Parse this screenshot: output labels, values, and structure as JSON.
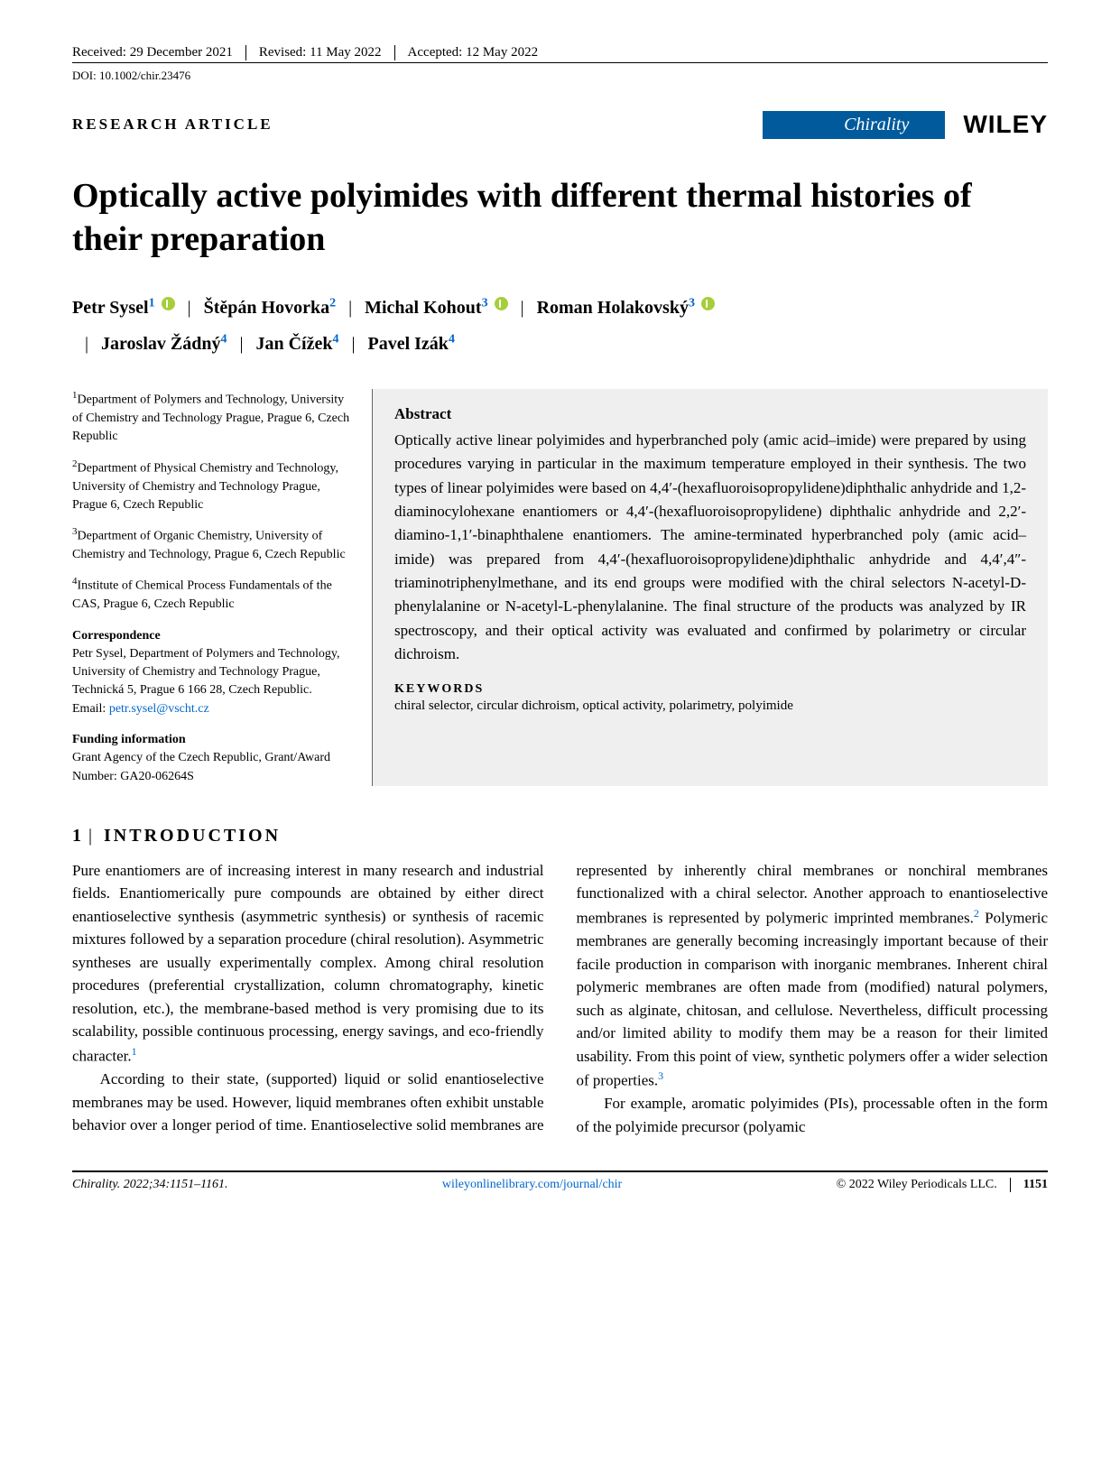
{
  "meta": {
    "received": "Received: 29 December 2021",
    "revised": "Revised: 11 May 2022",
    "accepted": "Accepted: 12 May 2022",
    "doi": "DOI: 10.1002/chir.23476",
    "article_type": "RESEARCH ARTICLE",
    "journal_badge": "Chirality",
    "publisher": "WILEY"
  },
  "title": "Optically active polyimides with different thermal histories of their preparation",
  "authors": [
    {
      "name": "Petr Sysel",
      "aff": "1",
      "orcid": true
    },
    {
      "name": "Štěpán Hovorka",
      "aff": "2",
      "orcid": false
    },
    {
      "name": "Michal Kohout",
      "aff": "3",
      "orcid": true
    },
    {
      "name": "Roman Holakovský",
      "aff": "3",
      "orcid": true
    },
    {
      "name": "Jaroslav Žádný",
      "aff": "4",
      "orcid": false
    },
    {
      "name": "Jan Čížek",
      "aff": "4",
      "orcid": false
    },
    {
      "name": "Pavel Izák",
      "aff": "4",
      "orcid": false
    }
  ],
  "affiliations": [
    {
      "num": "1",
      "text": "Department of Polymers and Technology, University of Chemistry and Technology Prague, Prague 6, Czech Republic"
    },
    {
      "num": "2",
      "text": "Department of Physical Chemistry and Technology, University of Chemistry and Technology Prague, Prague 6, Czech Republic"
    },
    {
      "num": "3",
      "text": "Department of Organic Chemistry, University of Chemistry and Technology, Prague 6, Czech Republic"
    },
    {
      "num": "4",
      "text": "Institute of Chemical Process Fundamentals of the CAS, Prague 6, Czech Republic"
    }
  ],
  "correspondence": {
    "head": "Correspondence",
    "body": "Petr Sysel, Department of Polymers and Technology, University of Chemistry and Technology Prague, Technická 5, Prague 6 166 28, Czech Republic.",
    "email_label": "Email: ",
    "email": "petr.sysel@vscht.cz"
  },
  "funding": {
    "head": "Funding information",
    "body": "Grant Agency of the Czech Republic, Grant/Award Number: GA20-06264S"
  },
  "abstract": {
    "head": "Abstract",
    "body": "Optically active linear polyimides and hyperbranched poly (amic acid–imide) were prepared by using procedures varying in particular in the maximum temperature employed in their synthesis. The two types of linear polyimides were based on 4,4′-(hexafluoroisopropylidene)diphthalic anhydride and 1,2-diaminocylohexane enantiomers or 4,4′-(hexafluoroisopropylidene) diphthalic anhydride and 2,2′-diamino-1,1′-binaphthalene enantiomers. The amine-terminated hyperbranched poly (amic acid–imide) was prepared from 4,4′-(hexafluoroisopropylidene)diphthalic anhydride and 4,4′,4″-triaminotriphenylmethane, and its end groups were modified with the chiral selectors N-acetyl-D-phenylalanine or N-acetyl-L-phenylalanine. The final structure of the products was analyzed by IR spectroscopy, and their optical activity was evaluated and confirmed by polarimetry or circular dichroism."
  },
  "keywords": {
    "head": "KEYWORDS",
    "body": "chiral selector, circular dichroism, optical activity, polarimetry, polyimide"
  },
  "section": {
    "num": "1",
    "title": "INTRODUCTION"
  },
  "body": {
    "p1": "Pure enantiomers are of increasing interest in many research and industrial fields. Enantiomerically pure compounds are obtained by either direct enantioselective synthesis (asymmetric synthesis) or synthesis of racemic mixtures followed by a separation procedure (chiral resolution). Asymmetric syntheses are usually experimentally complex. Among chiral resolution procedures (preferential crystallization, column chromatography, kinetic resolution, etc.), the membrane-based method is very promising due to its scalability, possible continuous processing, energy savings, and eco-friendly character.",
    "ref1": "1",
    "p2": "According to their state, (supported) liquid or solid enantioselective membranes may be used. However, liquid membranes often exhibit unstable behavior over a longer period of time. Enantioselective solid membranes are represented by inherently chiral membranes or nonchiral membranes functionalized with a chiral selector. Another approach to enantioselective membranes is represented by polymeric imprinted membranes.",
    "ref2": "2",
    "p2b": " Polymeric membranes are generally becoming increasingly important because of their facile production in comparison with inorganic membranes. Inherent chiral polymeric membranes are often made from (modified) natural polymers, such as alginate, chitosan, and cellulose. Nevertheless, difficult processing and/or limited ability to modify them may be a reason for their limited usability. From this point of view, synthetic polymers offer a wider selection of properties.",
    "ref3": "3",
    "p3": "For example, aromatic polyimides (PIs), processable often in the form of the polyimide precursor (polyamic"
  },
  "footer": {
    "citation_journal": "Chirality",
    "citation_rest": ". 2022;34:1151–1161.",
    "url": "wileyonlinelibrary.com/journal/chir",
    "copyright": "© 2022 Wiley Periodicals LLC.",
    "page": "1151"
  },
  "colors": {
    "badge_bg": "#005a9c",
    "link": "#0066cc",
    "abstract_bg": "#efefef",
    "orcid": "#a6ce39"
  }
}
